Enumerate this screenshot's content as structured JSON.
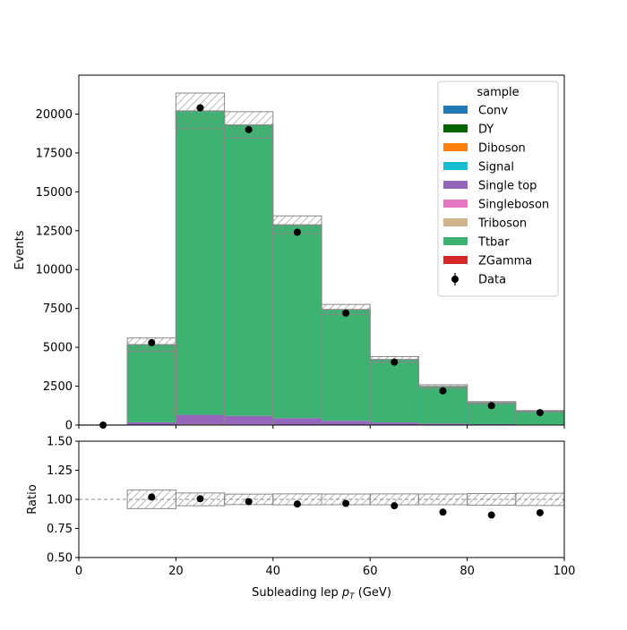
{
  "chart_data": [
    {
      "type": "bar",
      "subtype": "stacked-histogram",
      "ylabel": "Events",
      "xlim": [
        0,
        100
      ],
      "ylim": [
        0,
        22500
      ],
      "yticks": [
        0,
        2500,
        5000,
        7500,
        10000,
        12500,
        15000,
        17500,
        20000
      ],
      "bin_edges": [
        0,
        10,
        20,
        30,
        40,
        50,
        60,
        70,
        80,
        90,
        100
      ],
      "legend_title": "sample",
      "legend_position": "top-right",
      "series": [
        {
          "name": "Conv",
          "color": "#1f77b4",
          "values": [
            0,
            0,
            0,
            0,
            0,
            0,
            0,
            0,
            0,
            0
          ]
        },
        {
          "name": "DY",
          "color": "#006400",
          "values": [
            0,
            5,
            30,
            25,
            20,
            10,
            5,
            3,
            2,
            1
          ]
        },
        {
          "name": "Diboson",
          "color": "#ff7f0e",
          "values": [
            0,
            5,
            10,
            10,
            8,
            5,
            3,
            2,
            1,
            1
          ]
        },
        {
          "name": "Signal",
          "color": "#17becf",
          "values": [
            0,
            0,
            0,
            0,
            0,
            0,
            0,
            0,
            0,
            0
          ]
        },
        {
          "name": "Single top",
          "color": "#9467bd",
          "values": [
            0,
            170,
            620,
            560,
            420,
            260,
            160,
            90,
            55,
            35
          ]
        },
        {
          "name": "Singleboson",
          "color": "#e377c2",
          "values": [
            0,
            0,
            0,
            0,
            0,
            0,
            0,
            0,
            0,
            0
          ]
        },
        {
          "name": "Triboson",
          "color": "#d2b48c",
          "values": [
            0,
            0,
            0,
            0,
            0,
            0,
            0,
            0,
            0,
            0
          ]
        },
        {
          "name": "Ttbar",
          "color": "#3cb371",
          "values": [
            0,
            4990,
            19540,
            18705,
            12425,
            7155,
            4045,
            2385,
            1382,
            853
          ]
        },
        {
          "name": "ZGamma",
          "color": "#d62728",
          "values": [
            0,
            0,
            0,
            0,
            0,
            0,
            0,
            0,
            0,
            0
          ]
        }
      ],
      "uncertainty": [
        0,
        430,
        1150,
        850,
        580,
        330,
        190,
        110,
        70,
        45
      ],
      "data": {
        "name": "Data",
        "x": [
          5,
          15,
          25,
          35,
          45,
          55,
          65,
          75,
          85,
          95
        ],
        "y": [
          0,
          5300,
          20400,
          19000,
          12400,
          7200,
          4050,
          2200,
          1250,
          800
        ]
      },
      "grid": false
    },
    {
      "type": "scatter",
      "subtype": "ratio",
      "xlabel": "Subleading lep p_T (GeV)",
      "ylabel": "Ratio",
      "xlim": [
        0,
        100
      ],
      "ylim": [
        0.5,
        1.5
      ],
      "xticks": [
        0,
        20,
        40,
        60,
        80,
        100
      ],
      "yticks": [
        "0.50",
        "0.75",
        "1.00",
        "1.25",
        "1.50"
      ],
      "bin_edges": [
        0,
        10,
        20,
        30,
        40,
        50,
        60,
        70,
        80,
        90,
        100
      ],
      "band_halfwidth": [
        0,
        0.08,
        0.055,
        0.045,
        0.047,
        0.046,
        0.047,
        0.046,
        0.05,
        0.053
      ],
      "points": {
        "x": [
          15,
          25,
          35,
          45,
          55,
          65,
          75,
          85,
          95
        ],
        "y": [
          1.02,
          1.005,
          0.98,
          0.96,
          0.965,
          0.945,
          0.89,
          0.865,
          0.885
        ]
      },
      "grid": false
    }
  ]
}
